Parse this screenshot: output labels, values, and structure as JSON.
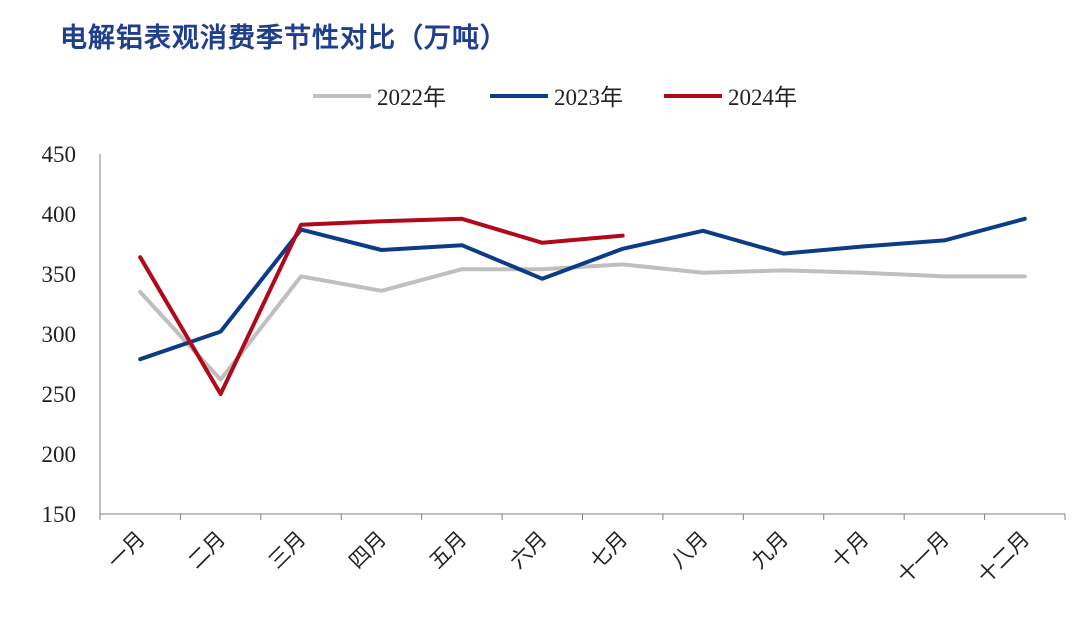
{
  "title": "电解铝表观消费季节性对比（万吨）",
  "chart_data": {
    "type": "line",
    "title": "电解铝表观消费季节性对比（万吨）",
    "categories": [
      "一月",
      "二月",
      "三月",
      "四月",
      "五月",
      "六月",
      "七月",
      "八月",
      "九月",
      "十月",
      "十一月",
      "十二月"
    ],
    "ylim": [
      150,
      450
    ],
    "yticks": [
      150,
      200,
      250,
      300,
      350,
      400,
      450
    ],
    "grid": false,
    "legend_position": "top-center",
    "series": [
      {
        "name": "2022年",
        "color": "#bfbfbf",
        "values": [
          335,
          262,
          348,
          336,
          354,
          354,
          358,
          351,
          353,
          351,
          348,
          348
        ]
      },
      {
        "name": "2023年",
        "color": "#0d3c87",
        "values": [
          279,
          302,
          387,
          370,
          374,
          346,
          371,
          386,
          367,
          373,
          378,
          396
        ]
      },
      {
        "name": "2024年",
        "color": "#b0091b",
        "values": [
          364,
          250,
          391,
          394,
          396,
          376,
          382,
          null,
          null,
          null,
          null,
          null
        ]
      }
    ]
  }
}
